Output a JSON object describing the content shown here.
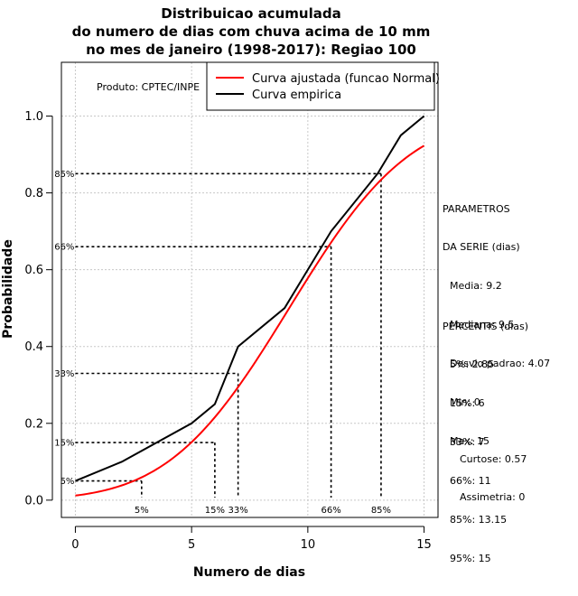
{
  "chart_data": {
    "type": "line",
    "title_lines": [
      "Distribuicao acumulada",
      "do numero de dias com chuva acima de 10 mm",
      "no mes de janeiro (1998-2017): Regiao 100"
    ],
    "xlabel": "Numero de dias",
    "ylabel": "Probabilidade",
    "xlim": [
      -0.6,
      15.6
    ],
    "ylim": [
      -0.045,
      1.14
    ],
    "x_ticks": [
      0,
      5,
      10,
      15
    ],
    "y_ticks": [
      0.0,
      0.2,
      0.4,
      0.6,
      0.8,
      1.0
    ],
    "y_tick_labels": [
      "0.0",
      "0.2",
      "0.4",
      "0.6",
      "0.8",
      "1.0"
    ],
    "grid": true,
    "credit": "Produto: CPTEC/INPE",
    "legend_position": "top-right",
    "series": [
      {
        "name": "Curva ajustada (funcao Normal)",
        "color": "#ff0000",
        "distribution": {
          "mean": 9.2,
          "sd": 4.07
        },
        "x_range": [
          0,
          15
        ]
      },
      {
        "name": "Curva empirica",
        "color": "#000000",
        "x": [
          0,
          2,
          5,
          6,
          7,
          9,
          11,
          13,
          14,
          15
        ],
        "y": [
          0.05,
          0.1,
          0.2,
          0.25,
          0.4,
          0.5,
          0.7,
          0.85,
          0.95,
          1.0
        ]
      }
    ],
    "percentiles": [
      {
        "label": "5%",
        "x": 2.85,
        "y": 0.05
      },
      {
        "label": "15%",
        "x": 6,
        "y": 0.15
      },
      {
        "label": "33%",
        "x": 7,
        "y": 0.33
      },
      {
        "label": "66%",
        "x": 11,
        "y": 0.66
      },
      {
        "label": "85%",
        "x": 13.15,
        "y": 0.85
      }
    ]
  },
  "stats": {
    "params_title": [
      "PARAMETROS",
      "DA SERIE (dias)"
    ],
    "params": [
      "Media: 9.2",
      "Mediana: 9.5",
      "Desvio padrao: 4.07",
      "Min: 0",
      "Max: 15"
    ],
    "pct_title": "PERCENTIS (dias)",
    "pct": [
      "5%: 2.85",
      "15%: 6",
      "33%: 7",
      "66%: 11",
      "85%: 13.15",
      "95%: 15"
    ],
    "curtose": "Curtose: 0.57",
    "assimetria": "Assimetria: 0"
  }
}
